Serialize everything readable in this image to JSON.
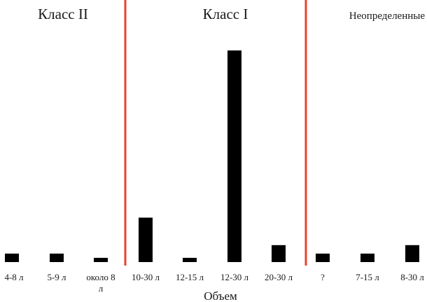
{
  "chart_data": {
    "type": "bar",
    "title": "",
    "xlabel": "Объем",
    "ylabel": "",
    "grid": false,
    "legend": "none",
    "ylim": [
      0,
      100
    ],
    "bar_color": "#000000",
    "divider_color": "#e8422f",
    "categories": [
      "4-8 л",
      "5-9 л",
      "около 8 л",
      "10-30 л",
      "12-15 л",
      "12-30 л",
      "20-30 л",
      "?",
      "7-15 л",
      "8-30 л"
    ],
    "values": [
      4,
      4,
      2,
      21,
      2,
      100,
      8,
      4,
      4,
      8
    ],
    "groups": [
      {
        "label": "Класс II",
        "categories": [
          "4-8 л",
          "5-9 л",
          "около 8 л"
        ]
      },
      {
        "label": "Класс I",
        "categories": [
          "10-30 л",
          "12-15 л",
          "12-30 л",
          "20-30 л"
        ]
      },
      {
        "label": "Неопределенные",
        "categories": [
          "?",
          "7-15 л",
          "8-30 л"
        ]
      }
    ]
  }
}
